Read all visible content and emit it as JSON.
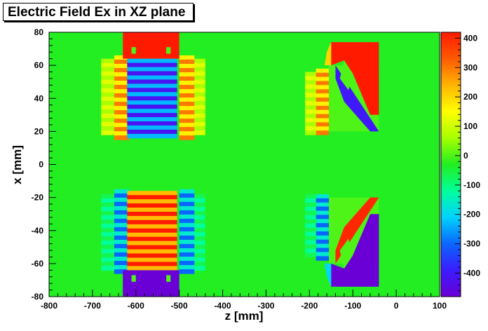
{
  "chart_data": {
    "type": "heatmap",
    "title": "Electric Field Ex in XZ plane",
    "xlabel": "z [mm]",
    "ylabel": "x [mm]",
    "xlim": [
      -800,
      100
    ],
    "ylim": [
      -80,
      80
    ],
    "x_ticks": [
      -800,
      -700,
      -600,
      -500,
      -400,
      -300,
      -200,
      -100,
      0,
      100
    ],
    "y_ticks": [
      -80,
      -60,
      -40,
      -20,
      0,
      20,
      40,
      60,
      80
    ],
    "zlim": [
      -480,
      420
    ],
    "z_ticks": [
      -400,
      -300,
      -200,
      -100,
      0,
      100,
      200,
      300,
      400
    ],
    "colormap": [
      "#6a00d5",
      "#3a1cff",
      "#0a66ff",
      "#00d2ff",
      "#00ff9a",
      "#22ee22",
      "#a6ff00",
      "#ffff00",
      "#ffb400",
      "#ff5a00",
      "#ff1a00"
    ],
    "background_color": "#22ee22",
    "regions": [
      {
        "z": [
          -650,
          -615
        ],
        "x": [
          15,
          66
        ],
        "value": 300,
        "pattern": "ripple"
      },
      {
        "z": [
          -500,
          -465
        ],
        "x": [
          15,
          66
        ],
        "value": 300,
        "pattern": "ripple"
      },
      {
        "z": [
          -650,
          -615
        ],
        "x": [
          -66,
          -15
        ],
        "value": -300,
        "pattern": "ripple"
      },
      {
        "z": [
          -500,
          -465
        ],
        "x": [
          -66,
          -15
        ],
        "value": -300,
        "pattern": "ripple"
      },
      {
        "z": [
          -680,
          -650
        ],
        "x": [
          18,
          64
        ],
        "value": 120,
        "pattern": "ripple"
      },
      {
        "z": [
          -465,
          -440
        ],
        "x": [
          18,
          64
        ],
        "value": 120,
        "pattern": "ripple"
      },
      {
        "z": [
          -680,
          -650
        ],
        "x": [
          -64,
          -18
        ],
        "value": -120,
        "pattern": "ripple"
      },
      {
        "z": [
          -465,
          -440
        ],
        "x": [
          -64,
          -18
        ],
        "value": -120,
        "pattern": "ripple"
      },
      {
        "z": [
          -620,
          -505
        ],
        "x": [
          16,
          64
        ],
        "value": -420,
        "pattern": "ripple"
      },
      {
        "z": [
          -620,
          -505
        ],
        "x": [
          -64,
          -16
        ],
        "value": 420,
        "pattern": "ripple"
      },
      {
        "z": [
          -630,
          -500
        ],
        "x": [
          64,
          80
        ],
        "value": 420
      },
      {
        "z": [
          -630,
          -500
        ],
        "x": [
          -80,
          -64
        ],
        "value": -480
      },
      {
        "z": [
          -610,
          -600
        ],
        "x": [
          67,
          71
        ],
        "value": 0
      },
      {
        "z": [
          -530,
          -520
        ],
        "x": [
          67,
          71
        ],
        "value": 0
      },
      {
        "z": [
          -610,
          -600
        ],
        "x": [
          -71,
          -67
        ],
        "value": 0
      },
      {
        "z": [
          -530,
          -520
        ],
        "x": [
          -71,
          -67
        ],
        "value": 0
      },
      {
        "z": [
          -185,
          -155
        ],
        "x": [
          18,
          58
        ],
        "value": 300,
        "pattern": "ripple"
      },
      {
        "z": [
          -185,
          -155
        ],
        "x": [
          -58,
          -18
        ],
        "value": -300,
        "pattern": "ripple"
      },
      {
        "z": [
          -210,
          -185
        ],
        "x": [
          18,
          56
        ],
        "value": 120,
        "pattern": "ripple"
      },
      {
        "z": [
          -210,
          -185
        ],
        "x": [
          -56,
          -18
        ],
        "value": -120,
        "pattern": "ripple"
      },
      {
        "z": [
          -155,
          -40
        ],
        "x": [
          20,
          60
        ],
        "value": 0
      },
      {
        "z": [
          -155,
          -40
        ],
        "x": [
          -60,
          -20
        ],
        "value": 0
      }
    ],
    "polygons": [
      {
        "points": [
          [
            -150,
            74
          ],
          [
            -40,
            74
          ],
          [
            -40,
            30
          ],
          [
            -60,
            30
          ],
          [
            -100,
            55
          ],
          [
            -120,
            63
          ],
          [
            -150,
            60
          ]
        ],
        "value": 420
      },
      {
        "points": [
          [
            -150,
            -74
          ],
          [
            -40,
            -74
          ],
          [
            -40,
            -30
          ],
          [
            -60,
            -30
          ],
          [
            -100,
            -55
          ],
          [
            -120,
            -63
          ],
          [
            -150,
            -60
          ]
        ],
        "value": -480
      },
      {
        "points": [
          [
            -140,
            60
          ],
          [
            -40,
            20
          ],
          [
            -60,
            20
          ],
          [
            -120,
            38
          ],
          [
            -140,
            52
          ]
        ],
        "value": -400,
        "pattern": "ripple"
      },
      {
        "points": [
          [
            -140,
            -60
          ],
          [
            -40,
            -20
          ],
          [
            -60,
            -20
          ],
          [
            -120,
            -38
          ],
          [
            -140,
            -52
          ]
        ],
        "value": 400,
        "pattern": "ripple"
      },
      {
        "points": [
          [
            -160,
            68
          ],
          [
            -150,
            74
          ],
          [
            -150,
            60
          ],
          [
            -165,
            60
          ]
        ],
        "value": 200
      },
      {
        "points": [
          [
            -160,
            -68
          ],
          [
            -150,
            -74
          ],
          [
            -150,
            -60
          ],
          [
            -165,
            -60
          ]
        ],
        "value": -200
      },
      {
        "points": [
          [
            -120,
            63
          ],
          [
            -100,
            55
          ],
          [
            -110,
            45
          ],
          [
            -130,
            52
          ]
        ],
        "value": 0
      },
      {
        "points": [
          [
            -120,
            -63
          ],
          [
            -100,
            -55
          ],
          [
            -110,
            -45
          ],
          [
            -130,
            -52
          ]
        ],
        "value": 0
      }
    ]
  }
}
